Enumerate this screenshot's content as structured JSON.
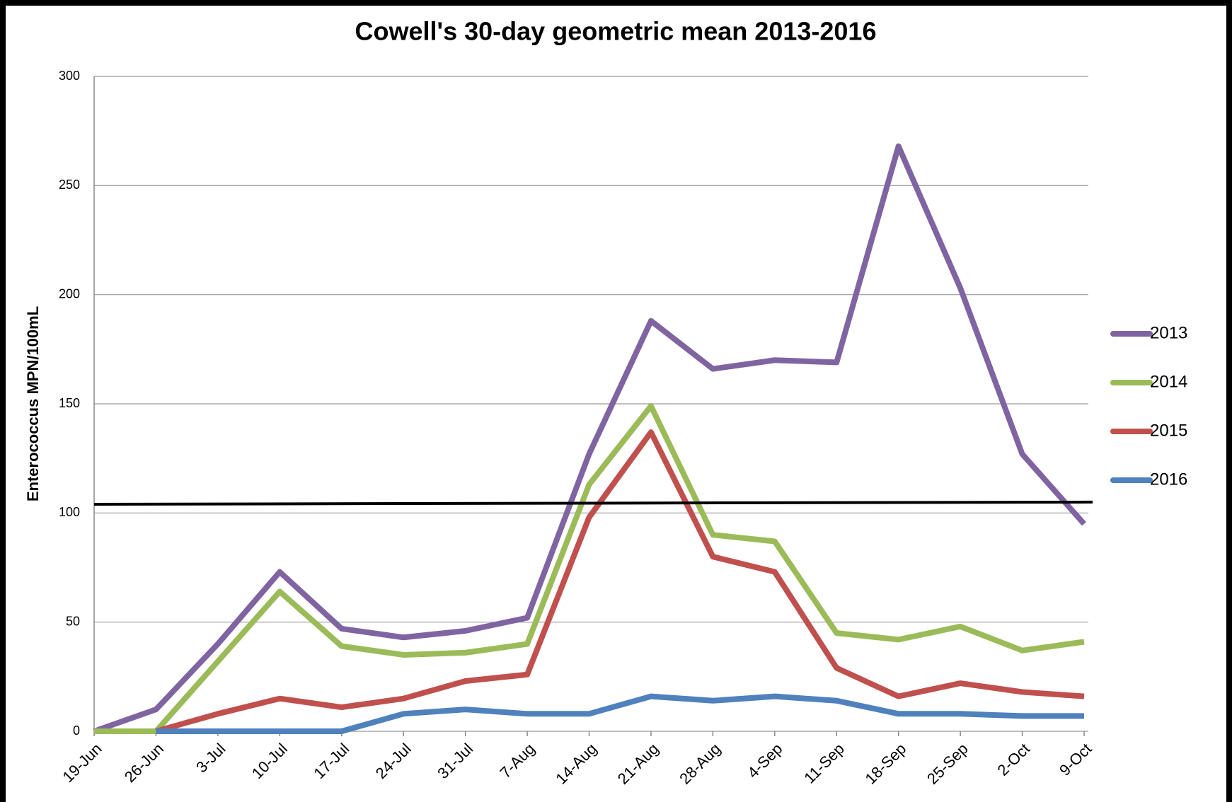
{
  "chart_data": {
    "type": "line",
    "title": "Cowell's 30-day geometric mean 2013-2016",
    "y_label": "Enterococcus MPN/100mL",
    "categories": [
      "19-Jun",
      "26-Jun",
      "3-Jul",
      "10-Jul",
      "17-Jul",
      "24-Jul",
      "31-Jul",
      "7-Aug",
      "14-Aug",
      "21-Aug",
      "28-Aug",
      "4-Sep",
      "11-Sep",
      "18-Sep",
      "25-Sep",
      "2-Oct",
      "9-Oct"
    ],
    "series": [
      {
        "name": "2013",
        "color": "#8064a2",
        "values": [
          0,
          10,
          40,
          73,
          47,
          43,
          46,
          52,
          127,
          188,
          166,
          170,
          169,
          268,
          203,
          127,
          95
        ]
      },
      {
        "name": "2014",
        "color": "#9bbb59",
        "values": [
          0,
          0,
          32,
          64,
          39,
          35,
          36,
          40,
          113,
          149,
          90,
          87,
          45,
          42,
          48,
          37,
          41
        ]
      },
      {
        "name": "2015",
        "color": "#c0504d",
        "values": [
          null,
          0,
          8,
          15,
          11,
          15,
          23,
          26,
          98,
          137,
          80,
          73,
          29,
          16,
          22,
          18,
          16
        ]
      },
      {
        "name": "2016",
        "color": "#4f81bd",
        "values": [
          null,
          0,
          0,
          0,
          0,
          8,
          10,
          8,
          8,
          16,
          14,
          16,
          14,
          8,
          8,
          7,
          7
        ]
      }
    ],
    "reference_line": [
      104,
      105
    ],
    "ylim": [
      0,
      300
    ],
    "yticks": [
      0,
      50,
      100,
      150,
      200,
      250,
      300
    ],
    "grid": true,
    "legend": "right"
  }
}
